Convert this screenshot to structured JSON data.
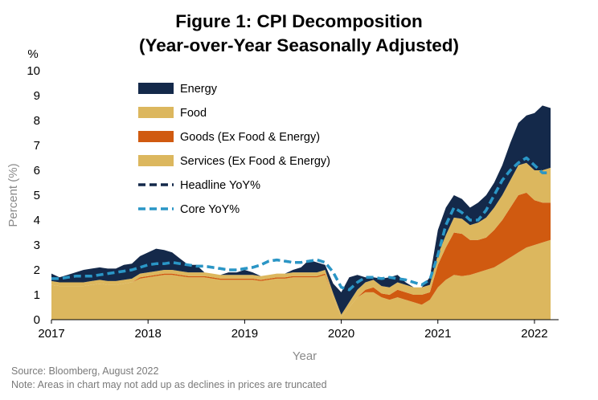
{
  "chart_data": {
    "type": "area",
    "title": "Figure 1: CPI Decomposition",
    "subtitle": "(Year-over-Year Seasonally Adjusted)",
    "ylabel": "Percent (%)",
    "yunit": "%",
    "xlabel": "Year",
    "ylim": [
      0,
      10
    ],
    "yticks": [
      "0",
      "1",
      "2",
      "3",
      "4",
      "5",
      "6",
      "7",
      "8",
      "9",
      "10"
    ],
    "xlim": [
      2017.0,
      2022.25
    ],
    "xticks": [
      {
        "value": 2017,
        "label": "2017"
      },
      {
        "value": 2018,
        "label": "2018"
      },
      {
        "value": 2019,
        "label": "2019"
      },
      {
        "value": 2020,
        "label": "2020"
      },
      {
        "value": 2021,
        "label": "2021"
      },
      {
        "value": 2022,
        "label": "2022"
      }
    ],
    "grid": false,
    "legend_position": "top-left",
    "colors": {
      "energy": "#14294a",
      "food": "#dcb75e",
      "goods": "#d05a10",
      "services": "#dcb75e",
      "headline": "#14294a",
      "core": "#2a96c6"
    },
    "x": [
      2017.0,
      2017.083,
      2017.167,
      2017.25,
      2017.333,
      2017.417,
      2017.5,
      2017.583,
      2017.667,
      2017.75,
      2017.833,
      2017.917,
      2018.0,
      2018.083,
      2018.167,
      2018.25,
      2018.333,
      2018.417,
      2018.5,
      2018.583,
      2018.667,
      2018.75,
      2018.833,
      2018.917,
      2019.0,
      2019.083,
      2019.167,
      2019.25,
      2019.333,
      2019.417,
      2019.5,
      2019.583,
      2019.667,
      2019.75,
      2019.833,
      2019.917,
      2020.0,
      2020.083,
      2020.167,
      2020.25,
      2020.333,
      2020.417,
      2020.5,
      2020.583,
      2020.667,
      2020.75,
      2020.833,
      2020.917,
      2021.0,
      2021.083,
      2021.167,
      2021.25,
      2021.333,
      2021.417,
      2021.5,
      2021.583,
      2021.667,
      2021.75,
      2021.833,
      2021.917,
      2022.0,
      2022.083,
      2022.167
    ],
    "series": [
      {
        "name": "Services (Ex Food & Energy)",
        "key": "services",
        "values": [
          1.4,
          1.35,
          1.35,
          1.35,
          1.35,
          1.4,
          1.45,
          1.4,
          1.4,
          1.45,
          1.5,
          1.65,
          1.7,
          1.75,
          1.8,
          1.8,
          1.75,
          1.7,
          1.7,
          1.7,
          1.65,
          1.6,
          1.6,
          1.6,
          1.6,
          1.6,
          1.55,
          1.6,
          1.65,
          1.65,
          1.7,
          1.7,
          1.7,
          1.7,
          1.8,
          0.9,
          0.1,
          0.5,
          0.9,
          1.1,
          1.1,
          0.9,
          0.8,
          0.9,
          0.8,
          0.7,
          0.6,
          0.8,
          1.3,
          1.6,
          1.8,
          1.75,
          1.8,
          1.9,
          2.0,
          2.1,
          2.3,
          2.5,
          2.7,
          2.9,
          3.0,
          3.1,
          3.2
        ]
      },
      {
        "name": "Goods (Ex Food & Energy)",
        "key": "goods",
        "values": [
          0.0,
          0.0,
          0.0,
          0.0,
          0.0,
          0.0,
          0.0,
          0.0,
          0.0,
          0.0,
          0.0,
          0.05,
          0.05,
          0.05,
          0.05,
          0.05,
          0.05,
          0.05,
          0.05,
          0.05,
          0.05,
          0.05,
          0.05,
          0.05,
          0.05,
          0.05,
          0.05,
          0.05,
          0.05,
          0.05,
          0.05,
          0.05,
          0.05,
          0.05,
          0.05,
          0.0,
          0.0,
          0.0,
          0.0,
          0.1,
          0.2,
          0.15,
          0.2,
          0.3,
          0.3,
          0.3,
          0.4,
          0.3,
          0.9,
          1.3,
          1.7,
          1.7,
          1.4,
          1.3,
          1.3,
          1.5,
          1.7,
          2.0,
          2.3,
          2.2,
          1.8,
          1.6,
          1.5
        ]
      },
      {
        "name": "Food",
        "key": "food",
        "values": [
          0.15,
          0.15,
          0.15,
          0.15,
          0.15,
          0.15,
          0.15,
          0.15,
          0.15,
          0.15,
          0.15,
          0.15,
          0.15,
          0.15,
          0.15,
          0.15,
          0.15,
          0.15,
          0.15,
          0.15,
          0.15,
          0.15,
          0.15,
          0.15,
          0.15,
          0.15,
          0.15,
          0.15,
          0.15,
          0.15,
          0.15,
          0.15,
          0.15,
          0.15,
          0.15,
          0.15,
          0.1,
          0.2,
          0.3,
          0.3,
          0.3,
          0.3,
          0.3,
          0.3,
          0.3,
          0.3,
          0.3,
          0.3,
          0.4,
          0.5,
          0.6,
          0.6,
          0.6,
          0.7,
          0.8,
          0.9,
          1.0,
          1.1,
          1.2,
          1.2,
          1.2,
          1.3,
          1.4
        ]
      },
      {
        "name": "Energy",
        "key": "energy",
        "values": [
          0.3,
          0.2,
          0.3,
          0.4,
          0.5,
          0.5,
          0.5,
          0.5,
          0.5,
          0.6,
          0.6,
          0.7,
          0.8,
          0.9,
          0.8,
          0.7,
          0.5,
          0.3,
          0.3,
          0.0,
          0.0,
          0.0,
          0.1,
          0.1,
          0.2,
          0.1,
          0.0,
          0.0,
          0.0,
          0.0,
          0.1,
          0.2,
          0.5,
          0.4,
          0.2,
          0.4,
          0.9,
          1.0,
          0.6,
          0.2,
          0.1,
          0.3,
          0.4,
          0.3,
          0.1,
          0.0,
          0.0,
          0.3,
          1.0,
          1.1,
          0.9,
          0.8,
          0.7,
          0.8,
          0.9,
          1.0,
          1.2,
          1.5,
          1.7,
          1.9,
          2.3,
          2.6,
          2.4
        ]
      }
    ],
    "lines": [
      {
        "name": "Headline YoY%",
        "key": "headline",
        "values": [
          1.65,
          1.65,
          1.7,
          1.75,
          1.75,
          1.75,
          1.8,
          1.85,
          1.9,
          1.95,
          2.0,
          2.1,
          2.2,
          2.25,
          2.25,
          2.3,
          2.25,
          2.2,
          2.15,
          2.15,
          2.1,
          2.05,
          2.0,
          2.0,
          2.05,
          2.1,
          2.2,
          2.35,
          2.4,
          2.35,
          2.3,
          2.3,
          2.35,
          2.4,
          2.3,
          1.9,
          1.3,
          1.2,
          1.5,
          1.7,
          1.7,
          1.65,
          1.7,
          1.65,
          1.6,
          1.5,
          1.4,
          1.6,
          2.6,
          3.8,
          4.5,
          4.3,
          4.0,
          4.0,
          4.4,
          5.0,
          5.6,
          6.0,
          6.3,
          6.5,
          6.2,
          5.9,
          5.9
        ]
      },
      {
        "name": "Core YoY%",
        "key": "core",
        "values": [
          1.65,
          1.65,
          1.7,
          1.75,
          1.75,
          1.75,
          1.8,
          1.85,
          1.9,
          1.95,
          2.0,
          2.1,
          2.2,
          2.25,
          2.25,
          2.3,
          2.25,
          2.2,
          2.15,
          2.15,
          2.1,
          2.05,
          2.0,
          2.0,
          2.05,
          2.1,
          2.2,
          2.35,
          2.4,
          2.35,
          2.3,
          2.3,
          2.35,
          2.4,
          2.3,
          1.9,
          1.3,
          1.2,
          1.5,
          1.7,
          1.7,
          1.65,
          1.7,
          1.65,
          1.6,
          1.5,
          1.4,
          1.6,
          2.6,
          3.8,
          4.5,
          4.3,
          4.0,
          4.0,
          4.4,
          5.0,
          5.6,
          6.0,
          6.3,
          6.5,
          6.2,
          5.9,
          5.9
        ]
      }
    ],
    "legend": [
      {
        "label": "Energy",
        "key": "energy",
        "kind": "area"
      },
      {
        "label": "Food",
        "key": "food",
        "kind": "area"
      },
      {
        "label": "Goods (Ex Food & Energy)",
        "key": "goods",
        "kind": "area"
      },
      {
        "label": "Services (Ex Food & Energy)",
        "key": "services",
        "kind": "area"
      },
      {
        "label": "Headline YoY%",
        "key": "headline",
        "kind": "dash"
      },
      {
        "label": "Core YoY%",
        "key": "core",
        "kind": "dash"
      }
    ]
  },
  "footnotes": {
    "source": "Source: Bloomberg, August 2022",
    "note": "Note: Areas in chart may not add up as declines in prices are truncated"
  }
}
